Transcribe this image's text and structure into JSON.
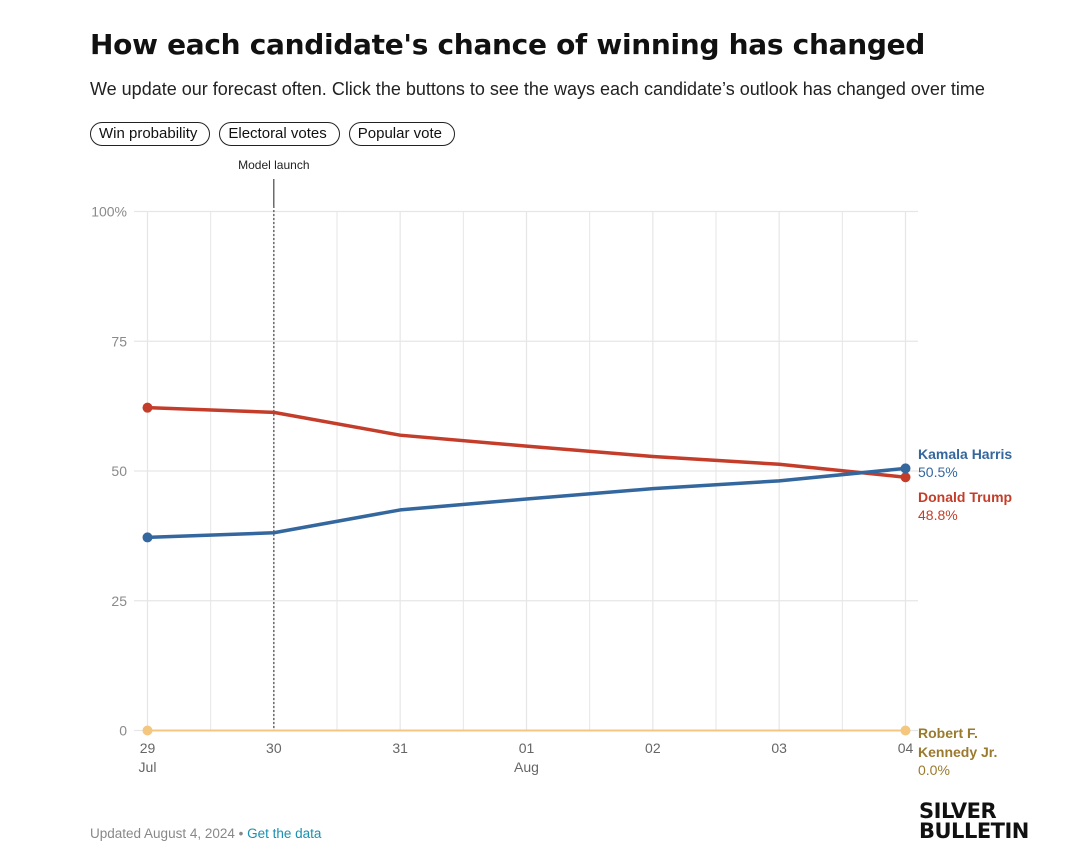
{
  "header": {
    "title": "How each candidate's chance of winning has changed",
    "subtitle": "We update our forecast often. Click the buttons to see the ways each candidate’s outlook has changed over time"
  },
  "buttons": [
    "Win probability",
    "Electoral votes",
    "Popular vote"
  ],
  "annotation": {
    "label": "Model launch",
    "x_index": 1
  },
  "footer": {
    "updated": "Updated August 4, 2024",
    "separator": " • ",
    "link": "Get the data"
  },
  "logo": {
    "line1": "SILVER",
    "line2": "BULLETIN"
  },
  "colors": {
    "harris": "#34679e",
    "trump": "#c43d2a",
    "rfk": "#f5c77e",
    "rfk_label": "#9a7a2e",
    "grid": "#e6e6e6",
    "axis_text": "#8a8a8a"
  },
  "chart_data": {
    "type": "line",
    "x_ticks": [
      {
        "day": "29",
        "month": "Jul"
      },
      {
        "day": "30",
        "month": ""
      },
      {
        "day": "31",
        "month": ""
      },
      {
        "day": "01",
        "month": "Aug"
      },
      {
        "day": "02",
        "month": ""
      },
      {
        "day": "03",
        "month": ""
      },
      {
        "day": "04",
        "month": ""
      }
    ],
    "y_ticks": [
      "100%",
      "75",
      "50",
      "25",
      "0"
    ],
    "y_tick_values": [
      100,
      75,
      50,
      25,
      0
    ],
    "ylim": [
      0,
      100
    ],
    "grid": true,
    "series": [
      {
        "key": "trump",
        "name": "Donald Trump",
        "end_label": "48.8%",
        "values": [
          62.2,
          61.3,
          56.9,
          54.8,
          52.8,
          51.3,
          48.8
        ]
      },
      {
        "key": "harris",
        "name": "Kamala Harris",
        "end_label": "50.5%",
        "values": [
          37.2,
          38.1,
          42.5,
          44.6,
          46.6,
          48.1,
          50.5
        ]
      },
      {
        "key": "rfk",
        "name_lines": [
          "Robert F.",
          "Kennedy Jr."
        ],
        "end_label": "0.0%",
        "values": [
          0,
          0,
          0,
          0,
          0,
          0,
          0
        ]
      }
    ]
  }
}
